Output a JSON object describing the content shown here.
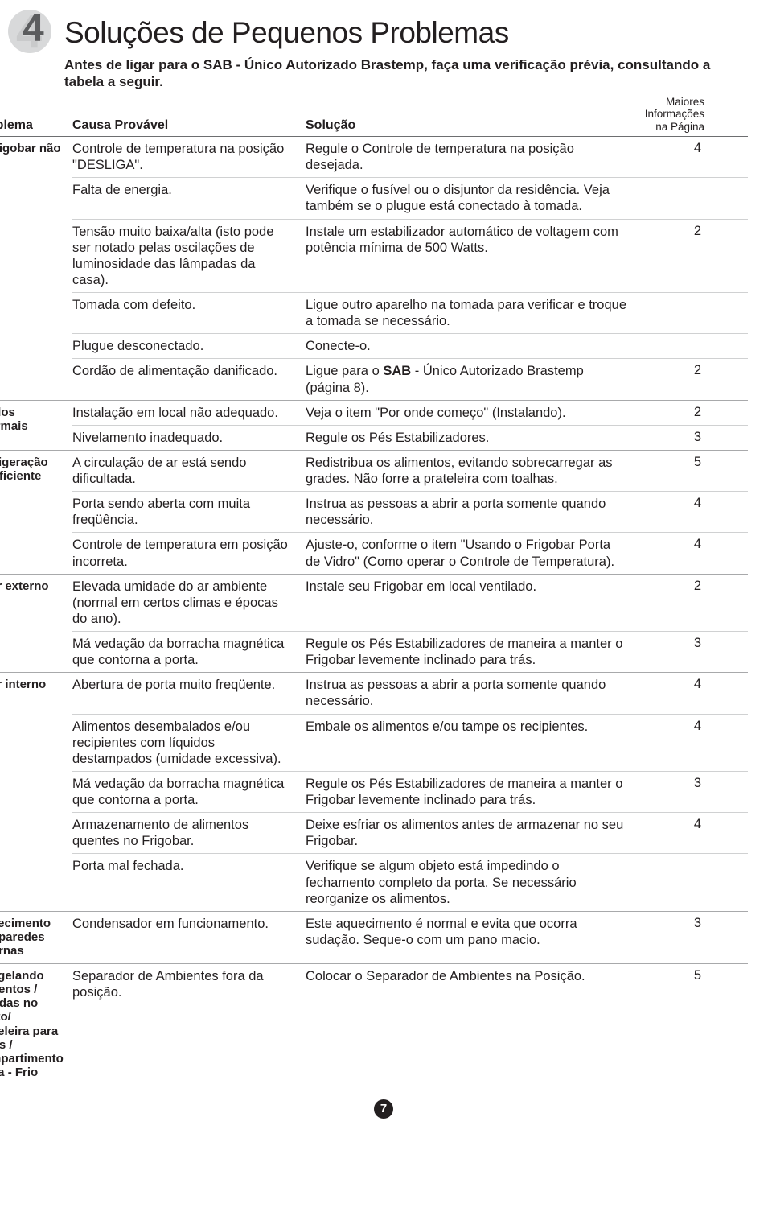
{
  "section_number": "4",
  "title": "Soluções de Pequenos Problemas",
  "intro": "Antes de ligar para o SAB - Único Autorizado Brastemp, faça uma verificação prévia, consultando a tabela a seguir.",
  "headers": {
    "problem": "Problema",
    "cause": "Causa Provável",
    "solution": "Solução",
    "page": "Maiores Informações na Página"
  },
  "groups": [
    {
      "problem": "O Frigobar não liga",
      "rows": [
        {
          "cause": "Controle de temperatura na posição \"DESLIGA\".",
          "solution": "Regule o Controle de temperatura na posição desejada.",
          "page": "4"
        },
        {
          "cause": "Falta de energia.",
          "solution": "Verifique o fusível ou o disjuntor da residência. Veja também se o plugue está conectado à tomada.",
          "page": ""
        },
        {
          "cause": "Tensão muito baixa/alta (isto pode ser notado pelas oscilações de luminosidade das lâmpadas da casa).",
          "solution": "Instale um estabilizador automático de voltagem com potência mínima de 500 Watts.",
          "page": "2"
        },
        {
          "cause": "Tomada com defeito.",
          "solution": "Ligue outro aparelho na tomada para verificar e troque a tomada se necessário.",
          "page": ""
        },
        {
          "cause": "Plugue desconectado.",
          "solution": "Conecte-o.",
          "page": ""
        },
        {
          "cause": "Cordão de alimentação danificado.",
          "solution_html": "Ligue para o <b>SAB</b> - Único Autorizado Brastemp (página 8).",
          "page": "2"
        }
      ]
    },
    {
      "problem": "Ruídos anormais",
      "rows": [
        {
          "cause": "Instalação em local não adequado.",
          "solution": "Veja o item \"Por onde começo\" (Instalando).",
          "page": "2"
        },
        {
          "cause": "Nivelamento inadequado.",
          "solution": "Regule os Pés Estabilizadores.",
          "page": "3"
        }
      ]
    },
    {
      "problem": "Refrigeração insuficiente",
      "rows": [
        {
          "cause": "A circulação de ar está sendo dificultada.",
          "solution": "Redistribua os alimentos, evitando sobrecarregar as grades. Não forre a prateleira com toalhas.",
          "page": "5"
        },
        {
          "cause": "Porta sendo aberta com muita freqüência.",
          "solution": "Instrua as pessoas a abrir a porta somente quando necessário.",
          "page": "4"
        },
        {
          "cause": "Controle de temperatura em posição incorreta.",
          "solution": "Ajuste-o, conforme o item \"Usando o Frigobar Porta de Vidro\" (Como operar o Controle de Temperatura).",
          "page": "4"
        }
      ]
    },
    {
      "problem": "Suor externo",
      "rows": [
        {
          "cause": "Elevada umidade do ar ambiente (normal em certos climas e épocas do ano).",
          "solution": "Instale seu Frigobar em local ventilado.",
          "page": "2"
        },
        {
          "cause": "Má vedação da borracha magnética que contorna a porta.",
          "solution": "Regule os Pés Estabilizadores de maneira a manter o Frigobar levemente inclinado para trás.",
          "page": "3"
        }
      ]
    },
    {
      "problem": "Suor interno",
      "rows": [
        {
          "cause": "Abertura de porta muito freqüente.",
          "solution": "Instrua as pessoas a abrir a porta somente quando necessário.",
          "page": "4"
        },
        {
          "cause": "Alimentos desembalados e/ou recipientes com líquidos destampados (umidade excessiva).",
          "solution": "Embale os alimentos e/ou tampe os recipientes.",
          "page": "4"
        },
        {
          "cause": "Má vedação da borracha magnética que contorna a porta.",
          "solution": "Regule os Pés Estabilizadores de maneira a manter o Frigobar levemente inclinado para trás.",
          "page": "3"
        },
        {
          "cause": "Armazenamento de alimentos quentes no Frigobar.",
          "solution": "Deixe esfriar os alimentos antes de armazenar no seu Frigobar.",
          "page": "4"
        },
        {
          "cause": "Porta mal fechada.",
          "solution": "Verifique se algum objeto está impedindo o fechamento completo da porta. Se necessário reorganize os alimentos.",
          "page": ""
        }
      ]
    },
    {
      "problem": "Aquecimento das paredes externas",
      "rows": [
        {
          "cause": "Condensador em funcionamento.",
          "solution": "Este aquecimento é normal e evita que ocorra sudação. Seque-o com um pano macio.",
          "page": "3"
        }
      ]
    },
    {
      "problem": "Congelando alimentos / bebidas no Cesto/ Prateleira para Latas / Compartimento Extra - Frio",
      "rows": [
        {
          "cause": "Separador de Ambientes fora da posição.",
          "solution": "Colocar o Separador de Ambientes na Posição.",
          "page": "5"
        }
      ]
    }
  ],
  "footer_page": "7"
}
